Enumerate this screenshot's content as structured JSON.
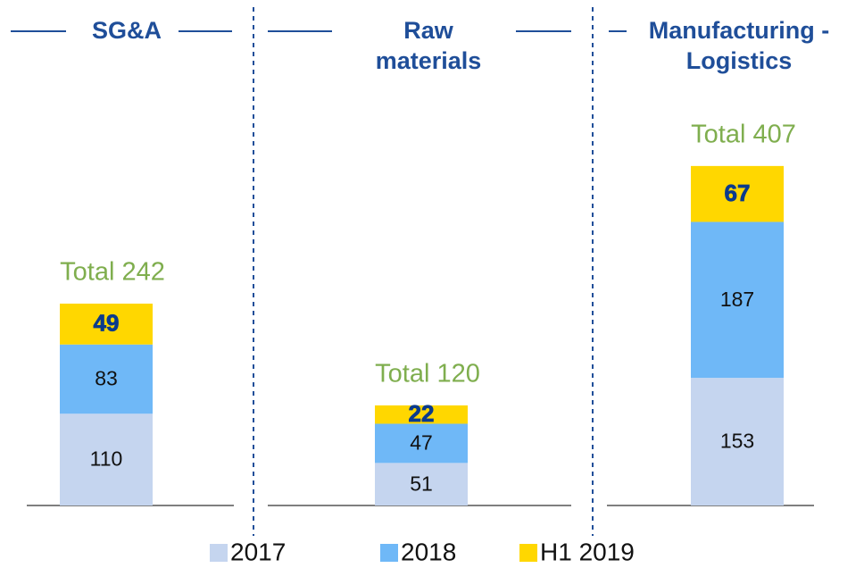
{
  "chart_data": {
    "type": "bar",
    "stacked": true,
    "categories": [
      "SG&A",
      "Raw materials",
      "Manufacturing - Logistics"
    ],
    "series": [
      {
        "name": "2017",
        "color": "#c5d5ef",
        "values": [
          110,
          51,
          153
        ]
      },
      {
        "name": "2018",
        "color": "#6fb8f7",
        "values": [
          83,
          47,
          187
        ]
      },
      {
        "name": "H1 2019",
        "color": "#ffd700",
        "values": [
          49,
          22,
          67
        ]
      }
    ],
    "totals": [
      "Total 242",
      "Total 120",
      "Total 407"
    ]
  }
}
